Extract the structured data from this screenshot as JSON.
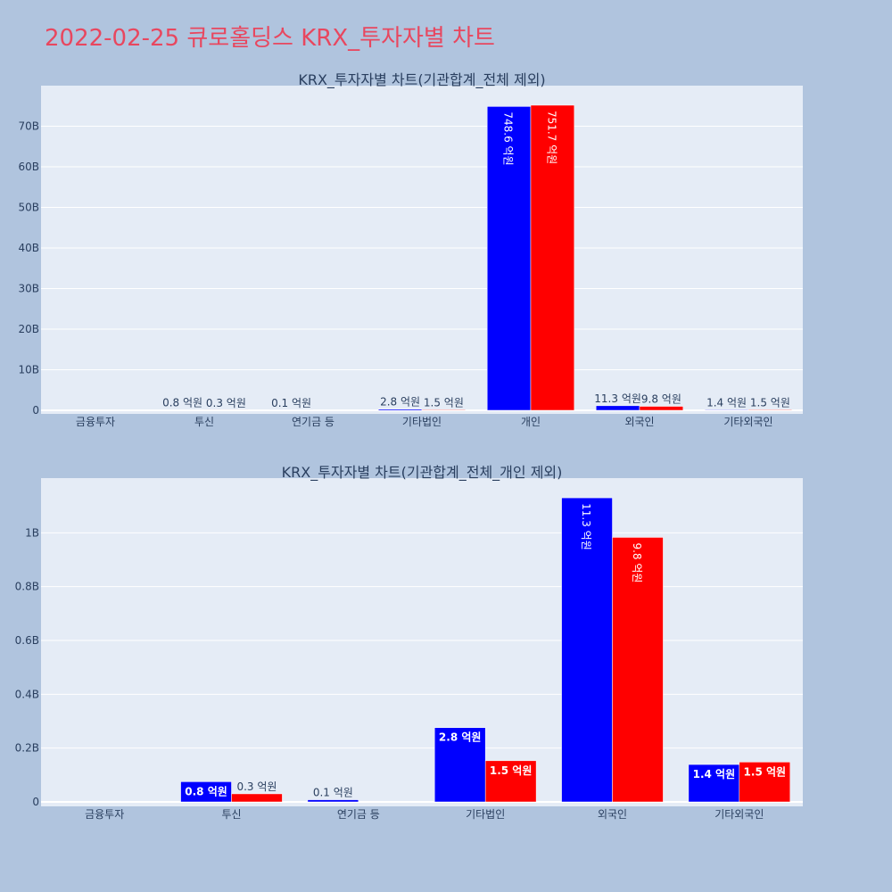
{
  "page": {
    "title": "2022-02-25 큐로홀딩스 KRX_투자자별 차트"
  },
  "chart_data": [
    {
      "type": "bar",
      "title": "KRX_투자자별 차트(기관합계_전체 제외)",
      "categories": [
        "금융투자",
        "투신",
        "연기금 등",
        "기타법인",
        "개인",
        "외국인",
        "기타외국인"
      ],
      "ylim": [
        0,
        80000000000
      ],
      "yticks": [
        0,
        10000000000,
        20000000000,
        30000000000,
        40000000000,
        50000000000,
        60000000000,
        70000000000
      ],
      "yticklabels": [
        "0",
        "10B",
        "20B",
        "30B",
        "40B",
        "50B",
        "60B",
        "70B"
      ],
      "series": [
        {
          "color": "#0000ff",
          "values": [
            0,
            80000000,
            10000000,
            280000000,
            74860000000,
            1130000000,
            140000000
          ],
          "labels": [
            "",
            "0.8 억원",
            "0.1 억원",
            "2.8 억원",
            "748.6 억원",
            "11.3 억원",
            "1.4 억원"
          ]
        },
        {
          "color": "#ff0000",
          "values": [
            0,
            30000000,
            0,
            150000000,
            75170000000,
            980000000,
            150000000
          ],
          "labels": [
            "",
            "0.3 억원",
            "",
            "1.5 억원",
            "751.7 억원",
            "9.8 억원",
            "1.5 억원"
          ]
        }
      ]
    },
    {
      "type": "bar",
      "title": "KRX_투자자별 차트(기관합계_전체_개인 제외)",
      "categories": [
        "금융투자",
        "투신",
        "연기금 등",
        "기타법인",
        "외국인",
        "기타외국인"
      ],
      "ylim": [
        0,
        1200000000
      ],
      "yticks": [
        0,
        200000000,
        400000000,
        600000000,
        800000000,
        1000000000
      ],
      "yticklabels": [
        "0",
        "0.2B",
        "0.4B",
        "0.6B",
        "0.8B",
        "1B"
      ],
      "series": [
        {
          "color": "#0000ff",
          "values": [
            0,
            75000000,
            8000000,
            276000000,
            1130000000,
            139000000
          ],
          "labels": [
            "",
            "0.8 억원",
            "0.1 억원",
            "2.8 억원",
            "11.3 억원",
            "1.4 억원"
          ]
        },
        {
          "color": "#ff0000",
          "values": [
            0,
            30000000,
            0,
            153000000,
            983000000,
            148000000
          ],
          "labels": [
            "",
            "0.3 억원",
            "",
            "1.5 억원",
            "9.8 억원",
            "1.5 억원"
          ]
        }
      ]
    }
  ]
}
